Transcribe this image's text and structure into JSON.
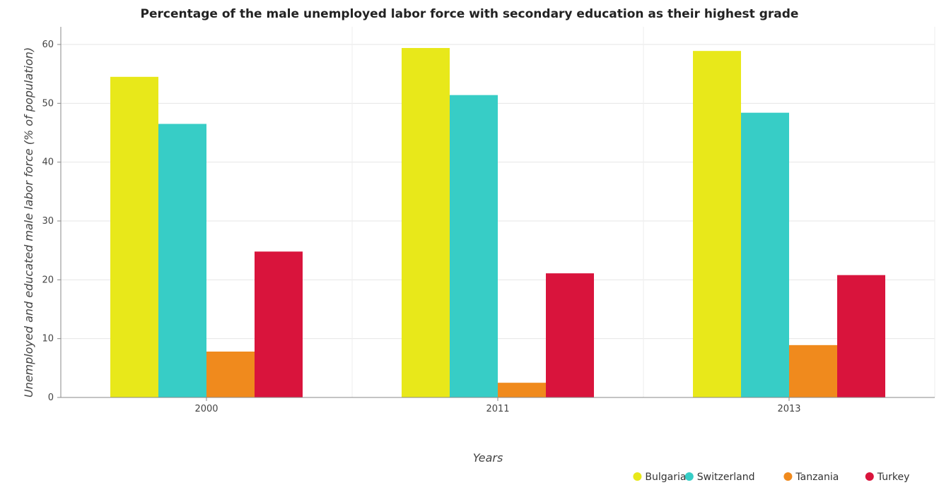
{
  "chart_data": {
    "type": "bar",
    "title": "Percentage of the male unemployed labor force with secondary education as their highest grade",
    "xlabel": "Years",
    "ylabel": "Unemployed and educated male labor force (% of population)",
    "categories": [
      "2000",
      "2011",
      "2013"
    ],
    "ylim": [
      0,
      63
    ],
    "yticks": [
      0,
      10,
      20,
      30,
      40,
      50,
      60
    ],
    "grid": true,
    "legend_position": "bottom-right",
    "series": [
      {
        "name": "Bulgaria",
        "color": "#e8e81a",
        "values": [
          54.5,
          59.4,
          58.9
        ]
      },
      {
        "name": "Switzerland",
        "color": "#37cdc6",
        "values": [
          46.5,
          51.4,
          48.4
        ]
      },
      {
        "name": "Tanzania",
        "color": "#f08a1d",
        "values": [
          7.8,
          2.5,
          8.9
        ]
      },
      {
        "name": "Turkey",
        "color": "#d9143c",
        "values": [
          24.8,
          21.1,
          20.8
        ]
      }
    ]
  }
}
